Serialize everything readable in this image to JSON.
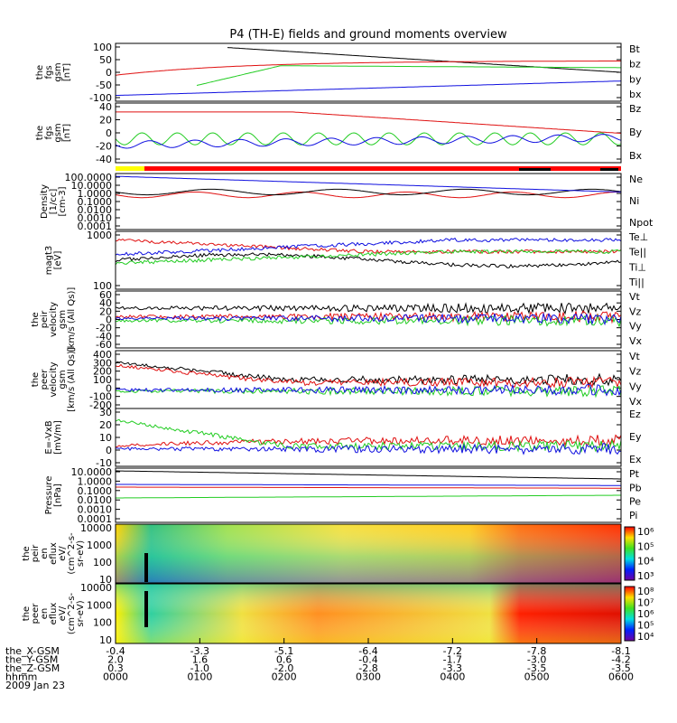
{
  "title": "P4 (TH-E) fields and ground moments overview",
  "time_axis": {
    "ticks": [
      "0000",
      "0100",
      "0200",
      "0300",
      "0400",
      "0500",
      "0600"
    ],
    "rows": [
      {
        "label": "the_X-GSM",
        "values": [
          "-0.4",
          "-3.3",
          "-5.1",
          "-6.4",
          "-7.2",
          "-7.8",
          "-8.1"
        ]
      },
      {
        "label": "the_Y-GSM",
        "values": [
          "2.0",
          "1.6",
          "0.6",
          "-0.4",
          "-1.7",
          "-3.0",
          "-4.2"
        ]
      },
      {
        "label": "the_Z-GSM",
        "values": [
          "0.3",
          "-1.0",
          "-2.0",
          "-2.8",
          "-3.3",
          "-3.5",
          "-3.5"
        ]
      },
      {
        "label": "hhmm",
        "values": [
          "0000",
          "0100",
          "0200",
          "0300",
          "0400",
          "0500",
          "0600"
        ]
      }
    ],
    "date": "2009 Jan 23"
  },
  "chart_data": [
    {
      "type": "line",
      "ylabel": [
        "the",
        "fgs",
        "gsm",
        "[nT]"
      ],
      "ylim": [
        -100,
        100
      ],
      "yticks": [
        "100",
        "50",
        "0",
        "-50",
        "-100"
      ],
      "series": [
        {
          "name": "Bt",
          "color": "#000000"
        },
        {
          "name": "bz",
          "color": "#e01010"
        },
        {
          "name": "by",
          "color": "#22cc22"
        },
        {
          "name": "bx",
          "color": "#1010e0"
        }
      ]
    },
    {
      "type": "line",
      "ylabel": [
        "the",
        "fgs",
        "gsm",
        "[nT]"
      ],
      "ylim": [
        -40,
        40
      ],
      "yticks": [
        "40",
        "20",
        "0",
        "-20",
        "-40"
      ],
      "series": [
        {
          "name": "Bz",
          "color": "#e01010"
        },
        {
          "name": "By",
          "color": "#22cc22"
        },
        {
          "name": "Bx",
          "color": "#1010e0"
        }
      ]
    },
    {
      "type": "line",
      "ylabel": [
        "Density",
        "[1/cc]",
        "[cm-3]"
      ],
      "log": true,
      "yticks": [
        "100.0000",
        "10.0000",
        "1.0000",
        "0.1000",
        "0.0100",
        "0.0010",
        "0.0001"
      ],
      "series": [
        {
          "name": "Ne",
          "color": "#e01010"
        },
        {
          "name": "Ni",
          "color": "#000000"
        },
        {
          "name": "Npot",
          "color": "#1010e0"
        }
      ]
    },
    {
      "type": "line",
      "ylabel": [
        "magt3",
        "[eV]"
      ],
      "log": true,
      "yticks": [
        "1000",
        "100"
      ],
      "series": [
        {
          "name": "Te⊥",
          "color": "#e01010"
        },
        {
          "name": "Te||",
          "color": "#000000"
        },
        {
          "name": "Ti⊥",
          "color": "#1010e0"
        },
        {
          "name": "Ti||",
          "color": "#22cc22"
        }
      ]
    },
    {
      "type": "line",
      "ylabel": [
        "the",
        "peir",
        "velocity",
        "gsm",
        "[km/s (All Qs)]"
      ],
      "ylim": [
        -60,
        60
      ],
      "yticks": [
        "60",
        "40",
        "20",
        "0",
        "-20",
        "-40",
        "-60"
      ],
      "series": [
        {
          "name": "Vt",
          "color": "#000000"
        },
        {
          "name": "Vz",
          "color": "#e01010"
        },
        {
          "name": "Vy",
          "color": "#22cc22"
        },
        {
          "name": "Vx",
          "color": "#1010e0"
        }
      ]
    },
    {
      "type": "line",
      "ylabel": [
        "the",
        "peer",
        "velocity",
        "gsm",
        "[km/s (All Qs)]"
      ],
      "ylim": [
        -200,
        400
      ],
      "yticks": [
        "400",
        "300",
        "200",
        "100",
        "0",
        "-100",
        "-200"
      ],
      "series": [
        {
          "name": "Vt",
          "color": "#000000"
        },
        {
          "name": "Vz",
          "color": "#e01010"
        },
        {
          "name": "Vy",
          "color": "#22cc22"
        },
        {
          "name": "Vx",
          "color": "#1010e0"
        }
      ]
    },
    {
      "type": "line",
      "ylabel": [
        "E=-VxB",
        "[mV/m]"
      ],
      "ylim": [
        -10,
        30
      ],
      "yticks": [
        "30",
        "20",
        "10",
        "0",
        "-10"
      ],
      "series": [
        {
          "name": "Ez",
          "color": "#e01010"
        },
        {
          "name": "Ey",
          "color": "#22cc22"
        },
        {
          "name": "Ex",
          "color": "#1010e0"
        }
      ]
    },
    {
      "type": "line",
      "ylabel": [
        "Pressure",
        "[nPa]"
      ],
      "log": true,
      "yticks": [
        "10.0000",
        "1.0000",
        "0.1000",
        "0.0100",
        "0.0010",
        "0.0001"
      ],
      "series": [
        {
          "name": "Pt",
          "color": "#000000"
        },
        {
          "name": "Pb",
          "color": "#e01010"
        },
        {
          "name": "Pe",
          "color": "#22cc22"
        },
        {
          "name": "Pi",
          "color": "#1010e0"
        }
      ]
    },
    {
      "type": "heatmap",
      "ylabel": [
        "the",
        "peir",
        "en",
        "eflux",
        "eV/",
        "(cm^2-s-",
        "sr-eV)"
      ],
      "yticks": [
        "10000",
        "1000",
        "100",
        "10"
      ],
      "colorbar": [
        "10⁶",
        "10⁵",
        "10⁴",
        "10³"
      ]
    },
    {
      "type": "heatmap",
      "ylabel": [
        "the",
        "peer",
        "en",
        "eflux",
        "eV/",
        "(cm^2-s-",
        "sr-eV)"
      ],
      "yticks": [
        "10000",
        "1000",
        "100",
        "10"
      ],
      "colorbar": [
        "10⁸",
        "10⁷",
        "10⁶",
        "10⁵",
        "10⁴"
      ]
    }
  ]
}
